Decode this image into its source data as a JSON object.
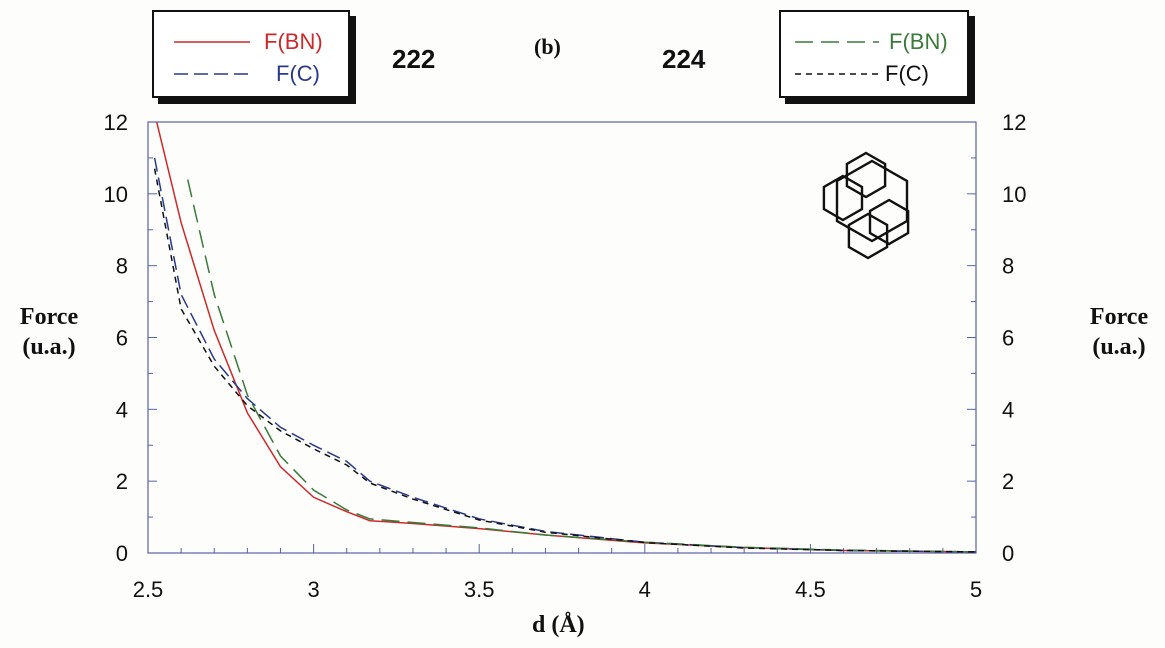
{
  "header": {
    "left_number": "222",
    "panel_label": "(b)",
    "right_number": "224"
  },
  "legend_left": {
    "items": [
      {
        "label": "F(BN)",
        "color": "#cc2a2a",
        "style": "solid"
      },
      {
        "label": "F(C)",
        "color": "#2a3a8a",
        "style": "dashed"
      }
    ]
  },
  "legend_right": {
    "items": [
      {
        "label": "F(BN)",
        "color": "#3a7a3a",
        "style": "dashed"
      },
      {
        "label": "F(C)",
        "color": "#111111",
        "style": "dashed"
      }
    ]
  },
  "molecule_icon": "pyrene-structure-icon",
  "chart_data": {
    "type": "line",
    "xlabel": "d (Å)",
    "ylabel_left": [
      "Force",
      "(u.a.)"
    ],
    "ylabel_right": [
      "Force",
      "(u.a.)"
    ],
    "xlim": [
      2.5,
      5
    ],
    "ylim": [
      0,
      12
    ],
    "xticks": [
      "2.5",
      "3",
      "3.5",
      "4",
      "4.5",
      "5"
    ],
    "xtick_values": [
      2.5,
      3,
      3.5,
      4,
      4.5,
      5
    ],
    "yticks": [
      "0",
      "2",
      "4",
      "6",
      "8",
      "10",
      "12"
    ],
    "ytick_values": [
      0,
      2,
      4,
      6,
      8,
      10,
      12
    ],
    "grid": false,
    "series": [
      {
        "name": "F(BN)",
        "molecule": "222",
        "color": "#cc2a2a",
        "dash": "",
        "x": [
          2.5,
          2.6,
          2.7,
          2.8,
          2.9,
          3.0,
          3.1,
          3.17,
          3.3,
          3.5,
          3.7,
          4.0,
          4.3,
          4.6,
          5.0
        ],
        "y": [
          13.0,
          9.2,
          6.2,
          3.9,
          2.4,
          1.55,
          1.15,
          0.9,
          0.82,
          0.68,
          0.5,
          0.28,
          0.15,
          0.07,
          0.03
        ]
      },
      {
        "name": "F(C)",
        "molecule": "222",
        "color": "#2a3a8a",
        "dash": "14,6",
        "x": [
          2.52,
          2.6,
          2.7,
          2.8,
          2.9,
          3.0,
          3.1,
          3.17,
          3.3,
          3.5,
          3.7,
          4.0,
          4.3,
          4.6,
          5.0
        ],
        "y": [
          11.0,
          7.2,
          5.4,
          4.3,
          3.5,
          3.0,
          2.55,
          2.0,
          1.55,
          0.95,
          0.6,
          0.3,
          0.15,
          0.07,
          0.03
        ]
      },
      {
        "name": "F(BN)",
        "molecule": "224",
        "color": "#3a7a3a",
        "dash": "18,8",
        "x": [
          2.62,
          2.7,
          2.8,
          2.9,
          3.0,
          3.1,
          3.17,
          3.3,
          3.5,
          3.7,
          4.0,
          4.3,
          4.6,
          5.0
        ],
        "y": [
          10.4,
          7.2,
          4.4,
          2.7,
          1.75,
          1.2,
          0.95,
          0.85,
          0.7,
          0.5,
          0.3,
          0.16,
          0.08,
          0.03
        ]
      },
      {
        "name": "F(C)",
        "molecule": "224",
        "color": "#111111",
        "dash": "6,5",
        "x": [
          2.52,
          2.6,
          2.7,
          2.8,
          2.9,
          3.0,
          3.1,
          3.17,
          3.3,
          3.5,
          3.7,
          4.0,
          4.3,
          4.6,
          5.0
        ],
        "y": [
          10.7,
          6.8,
          5.2,
          4.1,
          3.4,
          2.9,
          2.45,
          1.95,
          1.5,
          0.92,
          0.58,
          0.29,
          0.14,
          0.07,
          0.03
        ]
      }
    ]
  }
}
